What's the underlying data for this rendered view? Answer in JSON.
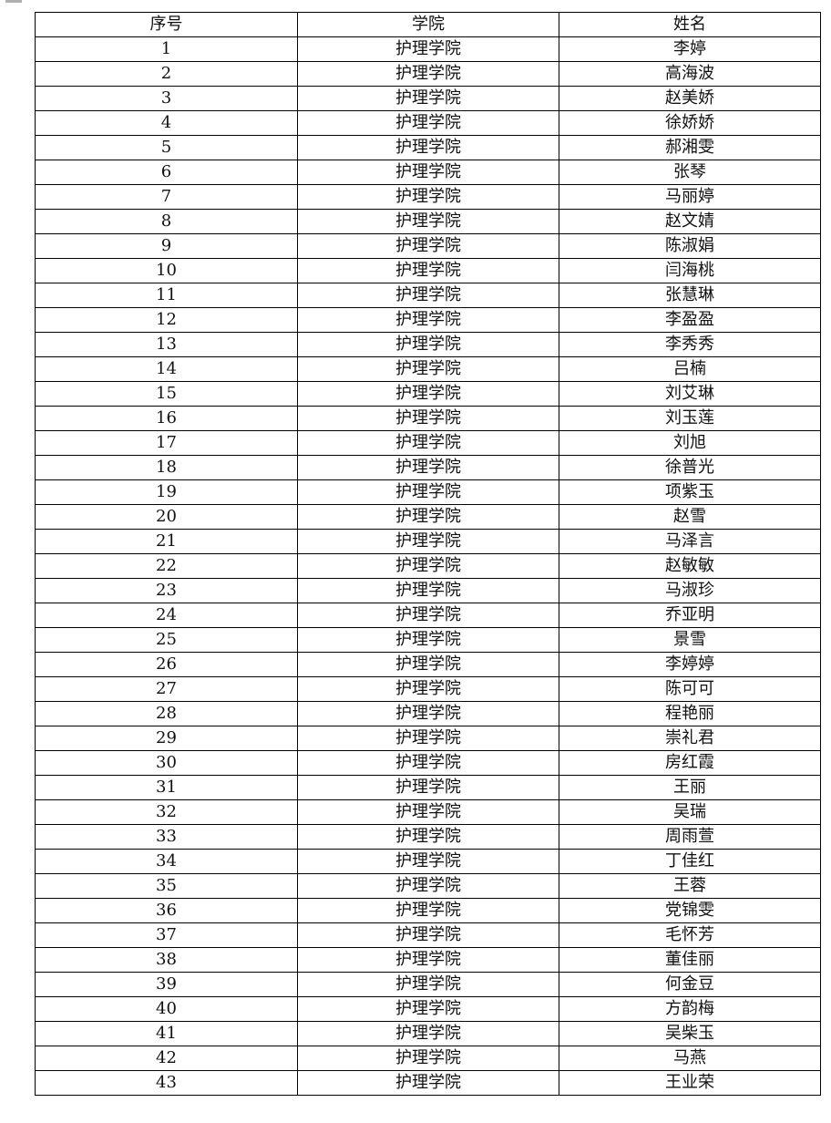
{
  "table": {
    "headers": [
      "序号",
      "学院",
      "姓名"
    ],
    "rows": [
      [
        "1",
        "护理学院",
        "李婷"
      ],
      [
        "2",
        "护理学院",
        "高海波"
      ],
      [
        "3",
        "护理学院",
        "赵美娇"
      ],
      [
        "4",
        "护理学院",
        "徐娇娇"
      ],
      [
        "5",
        "护理学院",
        "郝湘雯"
      ],
      [
        "6",
        "护理学院",
        "张琴"
      ],
      [
        "7",
        "护理学院",
        "马丽婷"
      ],
      [
        "8",
        "护理学院",
        "赵文婧"
      ],
      [
        "9",
        "护理学院",
        "陈淑娟"
      ],
      [
        "10",
        "护理学院",
        "闫海桃"
      ],
      [
        "11",
        "护理学院",
        "张慧琳"
      ],
      [
        "12",
        "护理学院",
        "李盈盈"
      ],
      [
        "13",
        "护理学院",
        "李秀秀"
      ],
      [
        "14",
        "护理学院",
        "吕楠"
      ],
      [
        "15",
        "护理学院",
        "刘艾琳"
      ],
      [
        "16",
        "护理学院",
        "刘玉莲"
      ],
      [
        "17",
        "护理学院",
        "刘旭"
      ],
      [
        "18",
        "护理学院",
        "徐普光"
      ],
      [
        "19",
        "护理学院",
        "项紫玉"
      ],
      [
        "20",
        "护理学院",
        "赵雪"
      ],
      [
        "21",
        "护理学院",
        "马泽言"
      ],
      [
        "22",
        "护理学院",
        "赵敏敏"
      ],
      [
        "23",
        "护理学院",
        "马淑珍"
      ],
      [
        "24",
        "护理学院",
        "乔亚明"
      ],
      [
        "25",
        "护理学院",
        "景雪"
      ],
      [
        "26",
        "护理学院",
        "李婷婷"
      ],
      [
        "27",
        "护理学院",
        "陈可可"
      ],
      [
        "28",
        "护理学院",
        "程艳丽"
      ],
      [
        "29",
        "护理学院",
        "崇礼君"
      ],
      [
        "30",
        "护理学院",
        "房红霞"
      ],
      [
        "31",
        "护理学院",
        "王丽"
      ],
      [
        "32",
        "护理学院",
        "吴瑞"
      ],
      [
        "33",
        "护理学院",
        "周雨萱"
      ],
      [
        "34",
        "护理学院",
        "丁佳红"
      ],
      [
        "35",
        "护理学院",
        "王蓉"
      ],
      [
        "36",
        "护理学院",
        "党锦雯"
      ],
      [
        "37",
        "护理学院",
        "毛怀芳"
      ],
      [
        "38",
        "护理学院",
        "董佳丽"
      ],
      [
        "39",
        "护理学院",
        "何金豆"
      ],
      [
        "40",
        "护理学院",
        "方韵梅"
      ],
      [
        "41",
        "护理学院",
        "吴柴玉"
      ],
      [
        "42",
        "护理学院",
        "马燕"
      ],
      [
        "43",
        "护理学院",
        "王业荣"
      ]
    ]
  }
}
